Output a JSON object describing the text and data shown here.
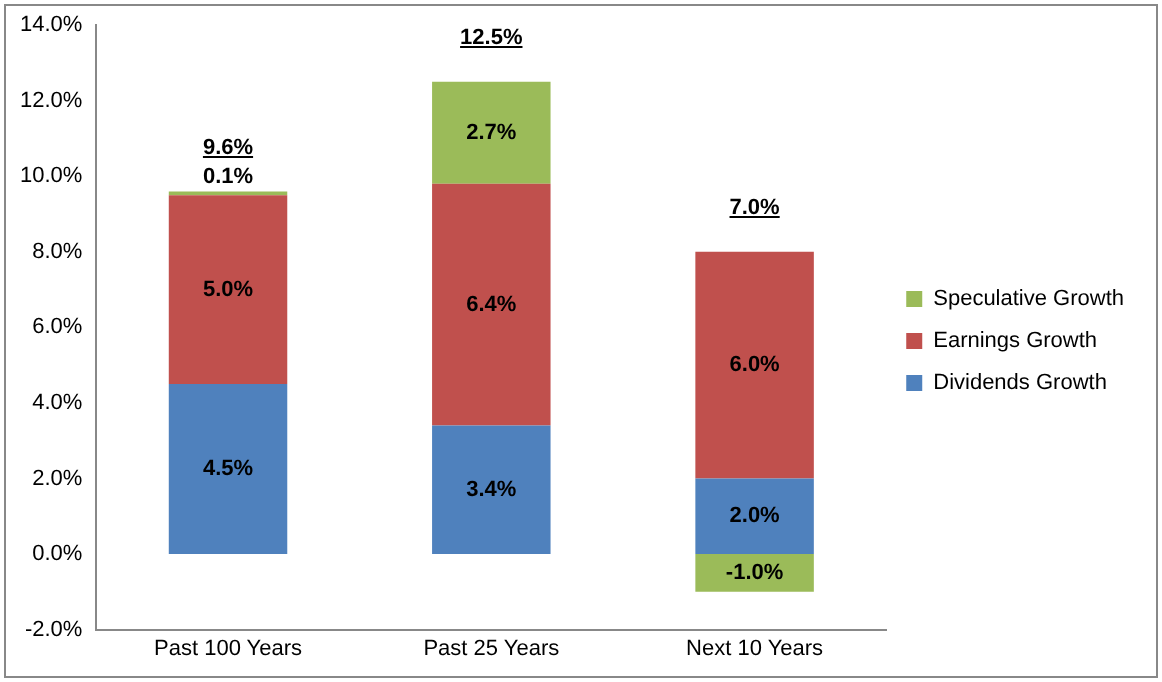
{
  "chart_data": {
    "type": "bar",
    "stacked": true,
    "categories": [
      "Past 100 Years",
      "Past 25 Years",
      "Next 10 Years"
    ],
    "series": [
      {
        "name": "Dividends Growth",
        "color": "#4f81bd",
        "values": [
          4.5,
          3.4,
          2.0
        ],
        "value_labels": [
          "4.5%",
          "3.4%",
          "2.0%"
        ]
      },
      {
        "name": "Earnings Growth",
        "color": "#c0504d",
        "values": [
          5.0,
          6.4,
          6.0
        ],
        "value_labels": [
          "5.0%",
          "6.4%",
          "6.0%"
        ]
      },
      {
        "name": "Speculative Growth",
        "color": "#9bbb59",
        "values": [
          0.1,
          2.7,
          -1.0
        ],
        "value_labels": [
          "0.1%",
          "2.7%",
          "-1.0%"
        ]
      }
    ],
    "totals": [
      "9.6%",
      "12.5%",
      "7.0%"
    ],
    "ylim": [
      -2,
      14
    ],
    "yticks": [
      {
        "value": -2,
        "label": "-2.0%"
      },
      {
        "value": 0,
        "label": "0.0%"
      },
      {
        "value": 2,
        "label": "2.0%"
      },
      {
        "value": 4,
        "label": "4.0%"
      },
      {
        "value": 6,
        "label": "6.0%"
      },
      {
        "value": 8,
        "label": "8.0%"
      },
      {
        "value": 10,
        "label": "10.0%"
      },
      {
        "value": 12,
        "label": "12.0%"
      },
      {
        "value": 14,
        "label": "14.0%"
      }
    ],
    "grid": false,
    "legend": "right"
  }
}
